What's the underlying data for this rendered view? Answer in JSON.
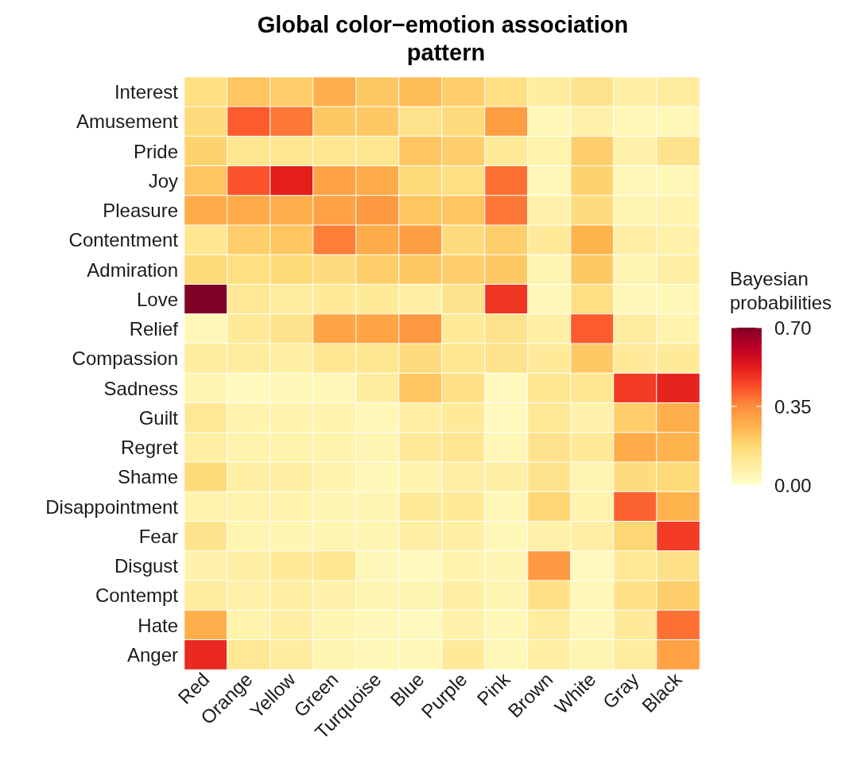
{
  "chart_data": {
    "type": "heatmap",
    "title": "Global color−emotion association pattern",
    "clabel": "Bayesian probabilities",
    "categories": [
      "Red",
      "Orange",
      "Yellow",
      "Green",
      "Turquoise",
      "Blue",
      "Purple",
      "Pink",
      "Brown",
      "White",
      "Gray",
      "Black"
    ],
    "y_categories": [
      "Interest",
      "Amusement",
      "Pride",
      "Joy",
      "Pleasure",
      "Contentment",
      "Admiration",
      "Love",
      "Relief",
      "Compassion",
      "Sadness",
      "Guilt",
      "Regret",
      "Shame",
      "Disappointment",
      "Fear",
      "Disgust",
      "Contempt",
      "Hate",
      "Anger"
    ],
    "cells": [
      [
        0.15,
        0.22,
        0.2,
        0.27,
        0.21,
        0.24,
        0.2,
        0.15,
        0.09,
        0.13,
        0.08,
        0.09
      ],
      [
        0.16,
        0.42,
        0.38,
        0.21,
        0.21,
        0.13,
        0.16,
        0.31,
        0.04,
        0.07,
        0.04,
        0.04
      ],
      [
        0.19,
        0.12,
        0.12,
        0.12,
        0.12,
        0.22,
        0.2,
        0.1,
        0.06,
        0.2,
        0.07,
        0.13
      ],
      [
        0.22,
        0.43,
        0.52,
        0.3,
        0.28,
        0.17,
        0.15,
        0.39,
        0.04,
        0.19,
        0.04,
        0.04
      ],
      [
        0.28,
        0.28,
        0.27,
        0.3,
        0.32,
        0.22,
        0.22,
        0.38,
        0.07,
        0.16,
        0.05,
        0.06
      ],
      [
        0.12,
        0.2,
        0.22,
        0.37,
        0.28,
        0.31,
        0.16,
        0.2,
        0.1,
        0.26,
        0.08,
        0.07
      ],
      [
        0.17,
        0.15,
        0.17,
        0.16,
        0.2,
        0.21,
        0.2,
        0.21,
        0.05,
        0.21,
        0.05,
        0.08
      ],
      [
        0.7,
        0.11,
        0.09,
        0.1,
        0.1,
        0.08,
        0.13,
        0.48,
        0.04,
        0.15,
        0.04,
        0.04
      ],
      [
        0.04,
        0.1,
        0.13,
        0.29,
        0.29,
        0.32,
        0.1,
        0.13,
        0.08,
        0.42,
        0.09,
        0.06
      ],
      [
        0.09,
        0.09,
        0.08,
        0.12,
        0.12,
        0.16,
        0.12,
        0.13,
        0.1,
        0.21,
        0.1,
        0.1
      ],
      [
        0.05,
        0.03,
        0.04,
        0.04,
        0.09,
        0.22,
        0.14,
        0.03,
        0.12,
        0.12,
        0.47,
        0.51
      ],
      [
        0.11,
        0.06,
        0.06,
        0.06,
        0.04,
        0.08,
        0.1,
        0.03,
        0.11,
        0.07,
        0.2,
        0.27
      ],
      [
        0.08,
        0.06,
        0.06,
        0.06,
        0.05,
        0.1,
        0.12,
        0.04,
        0.13,
        0.1,
        0.28,
        0.26
      ],
      [
        0.17,
        0.08,
        0.08,
        0.06,
        0.04,
        0.06,
        0.08,
        0.08,
        0.13,
        0.05,
        0.16,
        0.17
      ],
      [
        0.06,
        0.06,
        0.06,
        0.05,
        0.05,
        0.1,
        0.1,
        0.04,
        0.18,
        0.06,
        0.41,
        0.26
      ],
      [
        0.13,
        0.05,
        0.05,
        0.05,
        0.05,
        0.08,
        0.08,
        0.04,
        0.07,
        0.08,
        0.18,
        0.47
      ],
      [
        0.07,
        0.08,
        0.1,
        0.12,
        0.04,
        0.03,
        0.06,
        0.05,
        0.32,
        0.03,
        0.11,
        0.14
      ],
      [
        0.09,
        0.07,
        0.08,
        0.07,
        0.05,
        0.05,
        0.08,
        0.05,
        0.14,
        0.04,
        0.14,
        0.2
      ],
      [
        0.27,
        0.06,
        0.08,
        0.05,
        0.04,
        0.03,
        0.07,
        0.04,
        0.09,
        0.04,
        0.1,
        0.39
      ],
      [
        0.5,
        0.11,
        0.09,
        0.05,
        0.04,
        0.04,
        0.1,
        0.04,
        0.08,
        0.05,
        0.09,
        0.3
      ]
    ],
    "clim": [
      0,
      0.7
    ],
    "cticks": [
      {
        "value": 0,
        "label": "0.00"
      },
      0.35,
      {
        "value": 0.7,
        "label": "0.70"
      }
    ]
  }
}
